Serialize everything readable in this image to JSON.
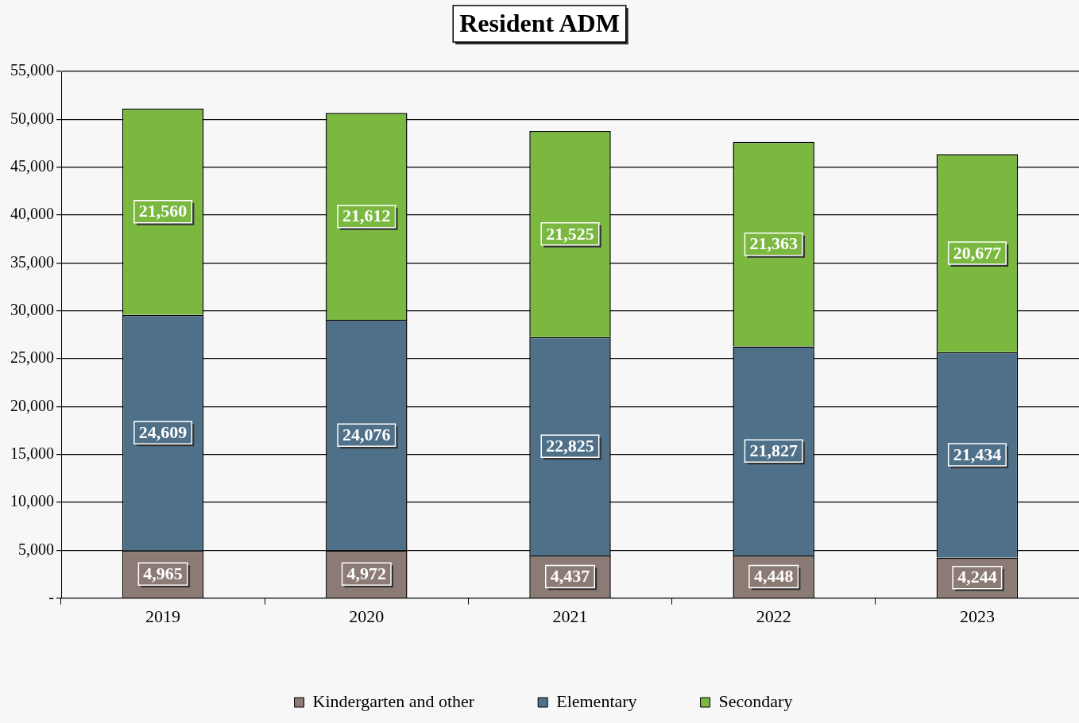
{
  "chart_data": {
    "type": "bar",
    "title": "Resident ADM",
    "stacked": true,
    "categories": [
      "2019",
      "2020",
      "2021",
      "2022",
      "2023"
    ],
    "series": [
      {
        "name": "Kindergarten and other",
        "color": "#8c7b75",
        "values": [
          4965,
          4972,
          4437,
          4448,
          4244
        ],
        "value_labels": [
          "4,965",
          "4,972",
          "4,437",
          "4,448",
          "4,244"
        ]
      },
      {
        "name": "Elementary",
        "color": "#4f7089",
        "values": [
          24609,
          24076,
          22825,
          21827,
          21434
        ],
        "value_labels": [
          "24,609",
          "24,076",
          "22,825",
          "21,827",
          "21,434"
        ]
      },
      {
        "name": "Secondary",
        "color": "#7ab840",
        "values": [
          21560,
          21612,
          21525,
          21363,
          20677
        ],
        "value_labels": [
          "21,560",
          "21,612",
          "21,525",
          "21,363",
          "20,677"
        ]
      }
    ],
    "ylim": [
      0,
      55000
    ],
    "yticks": [
      {
        "value": 0,
        "label": "-"
      },
      {
        "value": 5000,
        "label": "5,000"
      },
      {
        "value": 10000,
        "label": "10,000"
      },
      {
        "value": 15000,
        "label": "15,000"
      },
      {
        "value": 20000,
        "label": "20,000"
      },
      {
        "value": 25000,
        "label": "25,000"
      },
      {
        "value": 30000,
        "label": "30,000"
      },
      {
        "value": 35000,
        "label": "35,000"
      },
      {
        "value": 40000,
        "label": "40,000"
      },
      {
        "value": 45000,
        "label": "45,000"
      },
      {
        "value": 50000,
        "label": "50,000"
      },
      {
        "value": 55000,
        "label": "55,000"
      }
    ],
    "grid": "y",
    "legend": "bottom"
  }
}
